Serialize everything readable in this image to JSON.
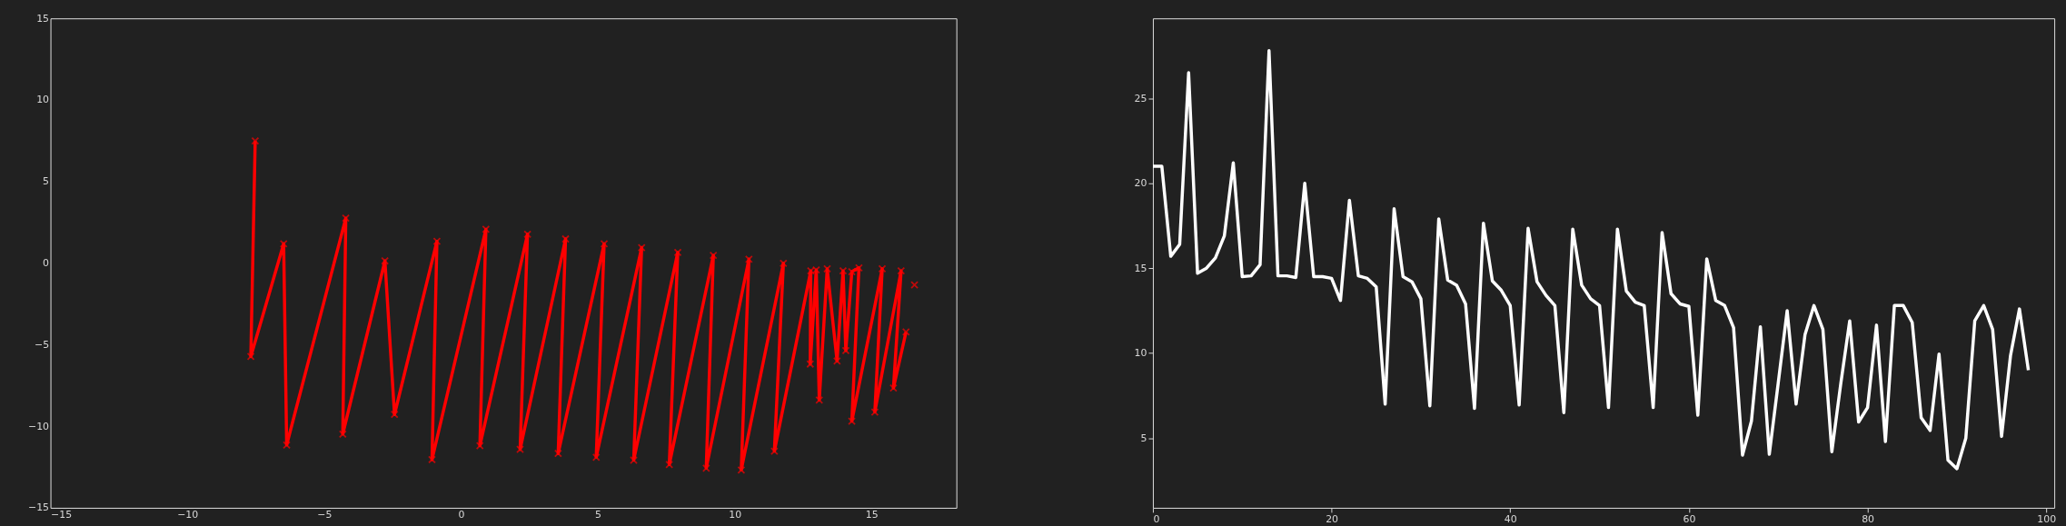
{
  "chart_data": [
    {
      "type": "line",
      "xlim": [
        -15,
        18.1
      ],
      "ylim": [
        -15,
        15
      ],
      "xticks": [
        -15,
        -10,
        -5,
        0,
        5,
        10,
        15
      ],
      "yticks": [
        -15,
        -10,
        -5,
        0,
        5,
        10,
        15
      ],
      "grid": false,
      "marker": "cross",
      "line_style": "solid",
      "series": [
        {
          "color": "#ff0000",
          "x": [
            -7.52,
            -7.68,
            -6.48,
            -6.37,
            -4.21,
            -4.32,
            -2.78,
            -2.43,
            -0.88,
            -1.06,
            0.91,
            0.69,
            2.43,
            2.16,
            3.82,
            3.55,
            5.23,
            4.94,
            6.6,
            6.31,
            7.92,
            7.61,
            9.22,
            8.96,
            10.52,
            10.24,
            11.78,
            11.45,
            12.78,
            12.76,
            12.98,
            13.09,
            13.38,
            13.74,
            13.96,
            14.06,
            14.28,
            14.54,
            14.28,
            15.39,
            15.12,
            16.08,
            15.8,
            16.26
          ],
          "values": [
            7.49,
            -5.73,
            1.18,
            -11.15,
            2.75,
            -10.48,
            0.13,
            -9.28,
            1.33,
            -12.05,
            2.07,
            -11.19,
            1.77,
            -11.42,
            1.48,
            -11.67,
            1.18,
            -11.9,
            0.95,
            -12.08,
            0.65,
            -12.35,
            0.47,
            -12.57,
            0.24,
            -12.68,
            -0.02,
            -11.53,
            -0.48,
            -6.19,
            -0.42,
            -8.4,
            -0.35,
            -6.0,
            -0.48,
            -5.36,
            -0.53,
            -0.29,
            -9.69,
            -0.35,
            -9.13,
            -0.48,
            -7.66,
            -4.22
          ]
        },
        {
          "type": "scatter",
          "color": "#ff0000",
          "x": [
            16.57
          ],
          "values": [
            -1.34
          ]
        }
      ]
    },
    {
      "type": "line",
      "xlim": [
        0,
        100.9
      ],
      "ylim": [
        0.9,
        29.7
      ],
      "xticks": [
        0,
        20,
        40,
        60,
        80,
        100
      ],
      "yticks": [
        5,
        10,
        15,
        20,
        25
      ],
      "grid": false,
      "marker": "none",
      "line_style": "solid",
      "x": [
        0,
        1,
        2,
        3,
        4,
        5,
        6,
        7,
        8,
        9,
        10,
        11,
        12,
        13,
        14,
        15,
        16,
        17,
        18,
        19,
        20,
        21,
        22,
        23,
        24,
        25,
        26,
        27,
        28,
        29,
        30,
        31,
        32,
        33,
        34,
        35,
        36,
        37,
        38,
        39,
        40,
        41,
        42,
        43,
        44,
        45,
        46,
        47,
        48,
        49,
        50,
        51,
        52,
        53,
        54,
        55,
        56,
        57,
        58,
        59,
        60,
        61,
        62,
        63,
        64,
        65,
        66,
        67,
        68,
        69,
        70,
        71,
        72,
        73,
        74,
        75,
        76,
        77,
        78,
        79,
        80,
        81,
        82,
        83,
        84,
        85,
        86,
        87,
        88,
        89,
        90,
        91,
        92,
        93,
        94,
        95,
        96,
        97,
        98
      ],
      "series": [
        {
          "color": "#ffffff",
          "values": [
            21,
            21,
            15.7,
            16.4,
            26.5,
            14.7,
            15.0,
            15.6,
            16.9,
            21.2,
            14.5,
            14.55,
            15.2,
            27.8,
            14.55,
            14.55,
            14.45,
            20.0,
            14.5,
            14.5,
            14.4,
            13.1,
            19.0,
            14.55,
            14.4,
            13.9,
            7.0,
            18.5,
            14.5,
            14.2,
            13.2,
            6.9,
            17.9,
            14.3,
            14.0,
            12.9,
            6.75,
            17.65,
            14.25,
            13.7,
            12.8,
            6.95,
            17.35,
            14.2,
            13.4,
            12.8,
            6.5,
            17.3,
            14.0,
            13.2,
            12.8,
            6.8,
            17.3,
            13.65,
            13.0,
            12.8,
            6.8,
            17.1,
            13.5,
            12.9,
            12.75,
            6.35,
            15.55,
            13.1,
            12.8,
            11.5,
            4.0,
            6.0,
            11.55,
            4.05,
            8.25,
            12.5,
            7.0,
            11.1,
            12.8,
            11.4,
            4.2,
            8.2,
            11.9,
            5.95,
            6.8,
            11.65,
            4.8,
            12.8,
            12.8,
            11.8,
            6.2,
            5.45,
            9.95,
            3.7,
            3.2,
            5.0,
            11.9,
            12.8,
            11.4,
            5.1,
            9.85,
            12.6,
            9.0
          ]
        }
      ]
    }
  ]
}
